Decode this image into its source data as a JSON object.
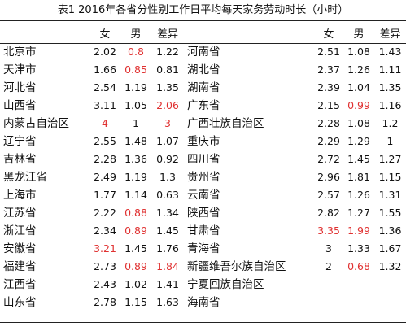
{
  "title": "表1 2016年各省分性别工作日平均每天家务劳动时长（小时）",
  "headers": {
    "female": "女",
    "male": "男",
    "diff": "差异"
  },
  "colors": {
    "highlight": "#e03131"
  },
  "left_rows": [
    {
      "province": "北京市",
      "f": "2.02",
      "m": "0.8",
      "d": "1.22",
      "red": [
        "m"
      ]
    },
    {
      "province": "天津市",
      "f": "1.66",
      "m": "0.85",
      "d": "0.81",
      "red": [
        "m"
      ]
    },
    {
      "province": "河北省",
      "f": "2.54",
      "m": "1.19",
      "d": "1.35",
      "red": []
    },
    {
      "province": "山西省",
      "f": "3.11",
      "m": "1.05",
      "d": "2.06",
      "red": [
        "d"
      ]
    },
    {
      "province": "内蒙古自治区",
      "f": "4",
      "m": "1",
      "d": "3",
      "red": [
        "f",
        "d"
      ]
    },
    {
      "province": "辽宁省",
      "f": "2.55",
      "m": "1.48",
      "d": "1.07",
      "red": []
    },
    {
      "province": "吉林省",
      "f": "2.28",
      "m": "1.36",
      "d": "0.92",
      "red": []
    },
    {
      "province": "黑龙江省",
      "f": "2.49",
      "m": "1.19",
      "d": "1.3",
      "red": []
    },
    {
      "province": "上海市",
      "f": "1.77",
      "m": "1.14",
      "d": "0.63",
      "red": []
    },
    {
      "province": "江苏省",
      "f": "2.22",
      "m": "0.88",
      "d": "1.34",
      "red": [
        "m"
      ]
    },
    {
      "province": "浙江省",
      "f": "2.34",
      "m": "0.89",
      "d": "1.45",
      "red": [
        "m"
      ]
    },
    {
      "province": "安徽省",
      "f": "3.21",
      "m": "1.45",
      "d": "1.76",
      "red": [
        "f"
      ]
    },
    {
      "province": "福建省",
      "f": "2.73",
      "m": "0.89",
      "d": "1.84",
      "red": [
        "m",
        "d"
      ]
    },
    {
      "province": "江西省",
      "f": "2.43",
      "m": "1.02",
      "d": "1.41",
      "red": []
    },
    {
      "province": "山东省",
      "f": "2.78",
      "m": "1.15",
      "d": "1.63",
      "red": []
    }
  ],
  "right_rows": [
    {
      "province": "河南省",
      "f": "2.51",
      "m": "1.08",
      "d": "1.43",
      "red": []
    },
    {
      "province": "湖北省",
      "f": "2.37",
      "m": "1.26",
      "d": "1.11",
      "red": []
    },
    {
      "province": "湖南省",
      "f": "2.39",
      "m": "1.04",
      "d": "1.35",
      "red": []
    },
    {
      "province": "广东省",
      "f": "2.15",
      "m": "0.99",
      "d": "1.16",
      "red": [
        "m"
      ]
    },
    {
      "province": "广西壮族自治区",
      "f": "2.28",
      "m": "1.08",
      "d": "1.2",
      "red": []
    },
    {
      "province": "重庆市",
      "f": "2.29",
      "m": "1.29",
      "d": "1",
      "red": []
    },
    {
      "province": "四川省",
      "f": "2.72",
      "m": "1.45",
      "d": "1.27",
      "red": []
    },
    {
      "province": "贵州省",
      "f": "2.96",
      "m": "1.81",
      "d": "1.15",
      "red": []
    },
    {
      "province": "云南省",
      "f": "2.57",
      "m": "1.26",
      "d": "1.31",
      "red": []
    },
    {
      "province": "陕西省",
      "f": "2.82",
      "m": "1.27",
      "d": "1.55",
      "red": []
    },
    {
      "province": "甘肃省",
      "f": "3.35",
      "m": "1.99",
      "d": "1.36",
      "red": [
        "f",
        "m"
      ]
    },
    {
      "province": "青海省",
      "f": "3",
      "m": "1.33",
      "d": "1.67",
      "red": []
    },
    {
      "province": "新疆维吾尔族自治区",
      "f": "2",
      "m": "0.68",
      "d": "1.32",
      "red": [
        "m"
      ]
    },
    {
      "province": "宁夏回族自治区",
      "f": "---",
      "m": "---",
      "d": "---",
      "red": []
    },
    {
      "province": "海南省",
      "f": "---",
      "m": "---",
      "d": "---",
      "red": []
    }
  ]
}
